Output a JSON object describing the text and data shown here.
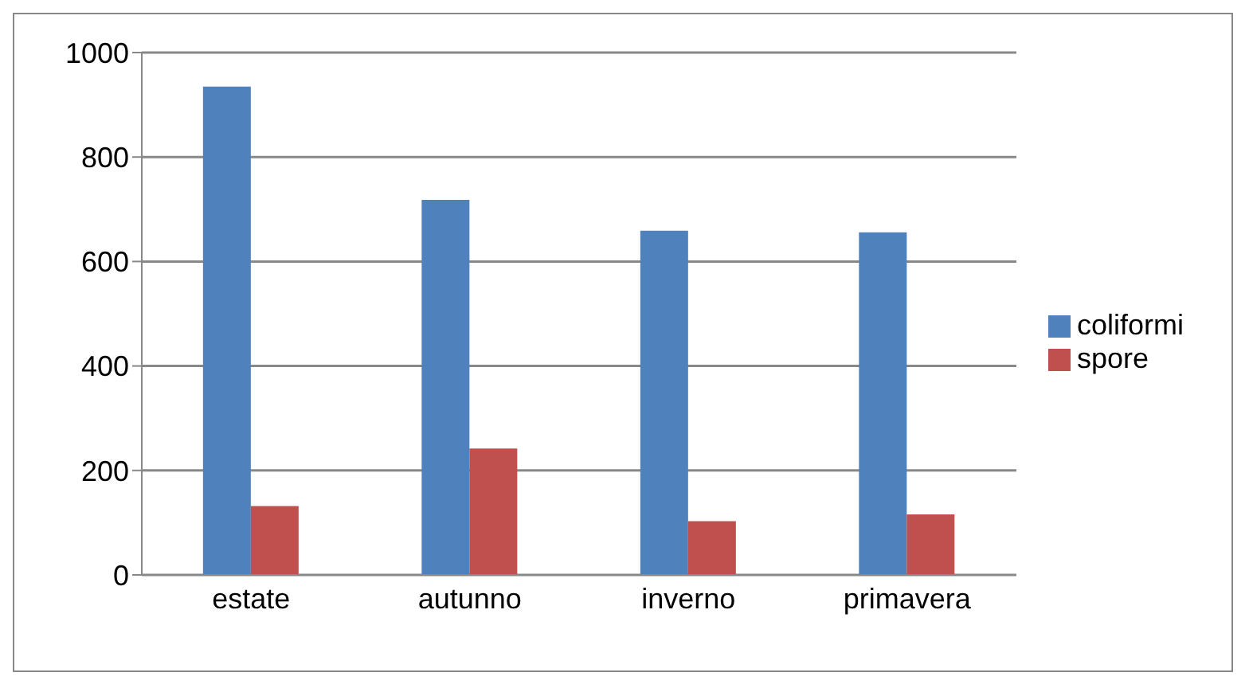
{
  "chart_data": {
    "type": "bar",
    "categories": [
      "estate",
      "autunno",
      "inverno",
      "primavera"
    ],
    "series": [
      {
        "name": "coliformi",
        "color": "#4f81bd",
        "values": [
          935,
          718,
          659,
          656
        ]
      },
      {
        "name": "spore",
        "color": "#c0504d",
        "values": [
          132,
          242,
          103,
          116
        ]
      }
    ],
    "ylim": [
      0,
      1000
    ],
    "yticks": [
      0,
      200,
      400,
      600,
      800,
      1000
    ],
    "grid": "y",
    "legend": "right"
  }
}
